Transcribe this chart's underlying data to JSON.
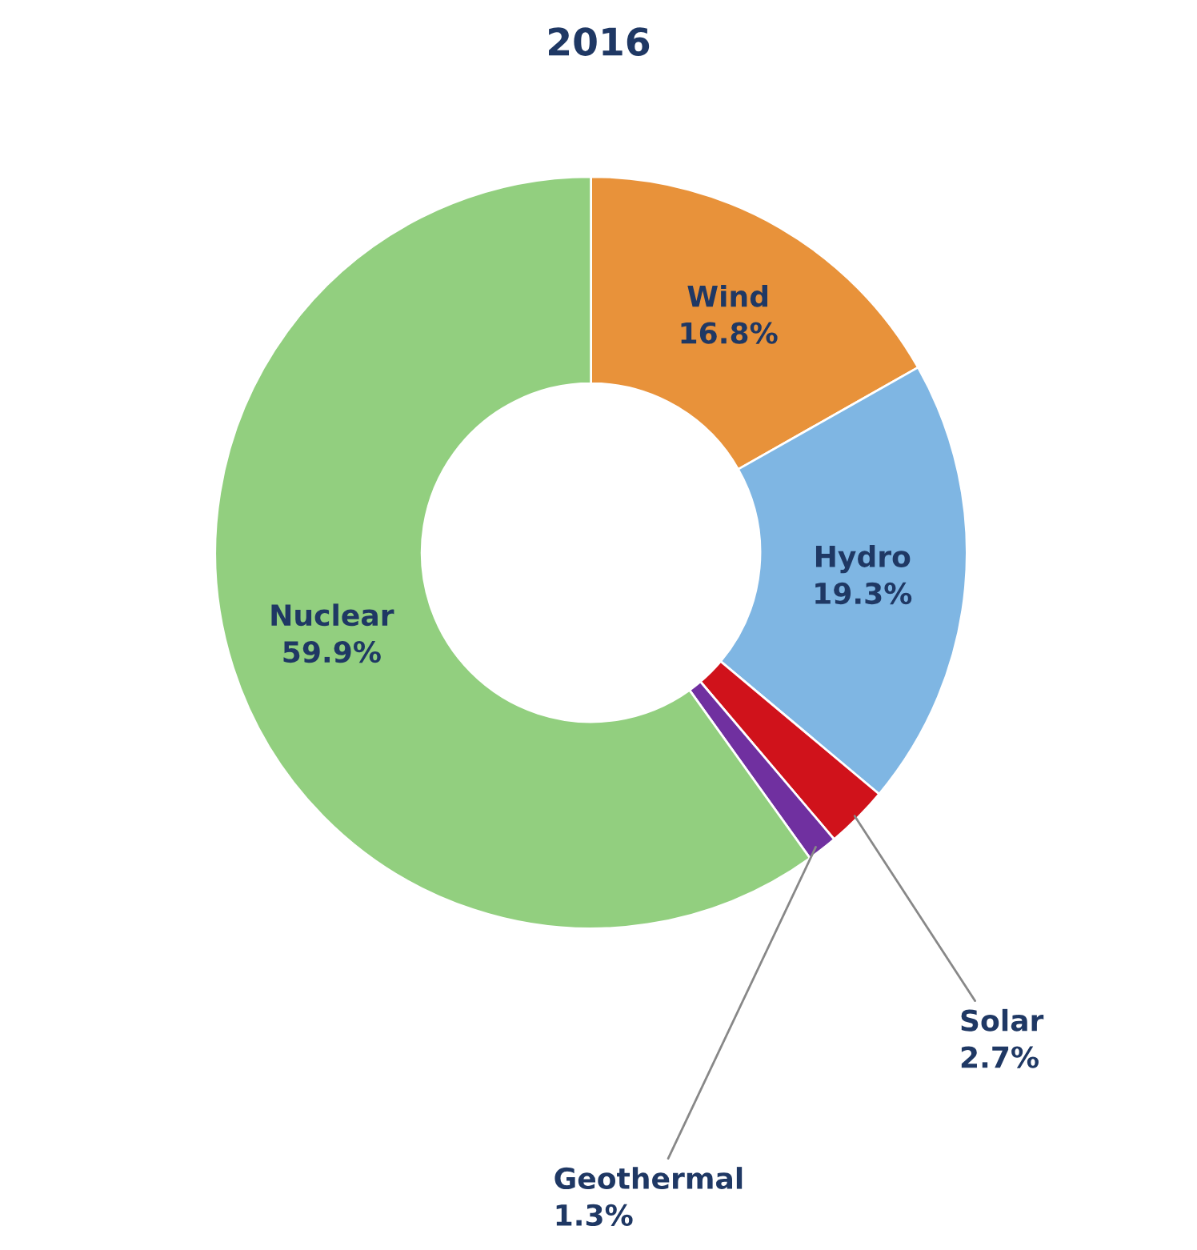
{
  "chart_data": {
    "type": "donut",
    "title": "2016",
    "categories": [
      "Wind",
      "Hydro",
      "Solar",
      "Geothermal",
      "Nuclear"
    ],
    "values": [
      16.8,
      19.3,
      2.7,
      1.3,
      59.9
    ],
    "colors": [
      "#e8923a",
      "#7fb6e3",
      "#d0121b",
      "#7030a0",
      "#92cf7f"
    ],
    "value_labels": [
      "16.8%",
      "19.3%",
      "2.7%",
      "1.3%",
      "59.9%"
    ],
    "legend": false
  }
}
